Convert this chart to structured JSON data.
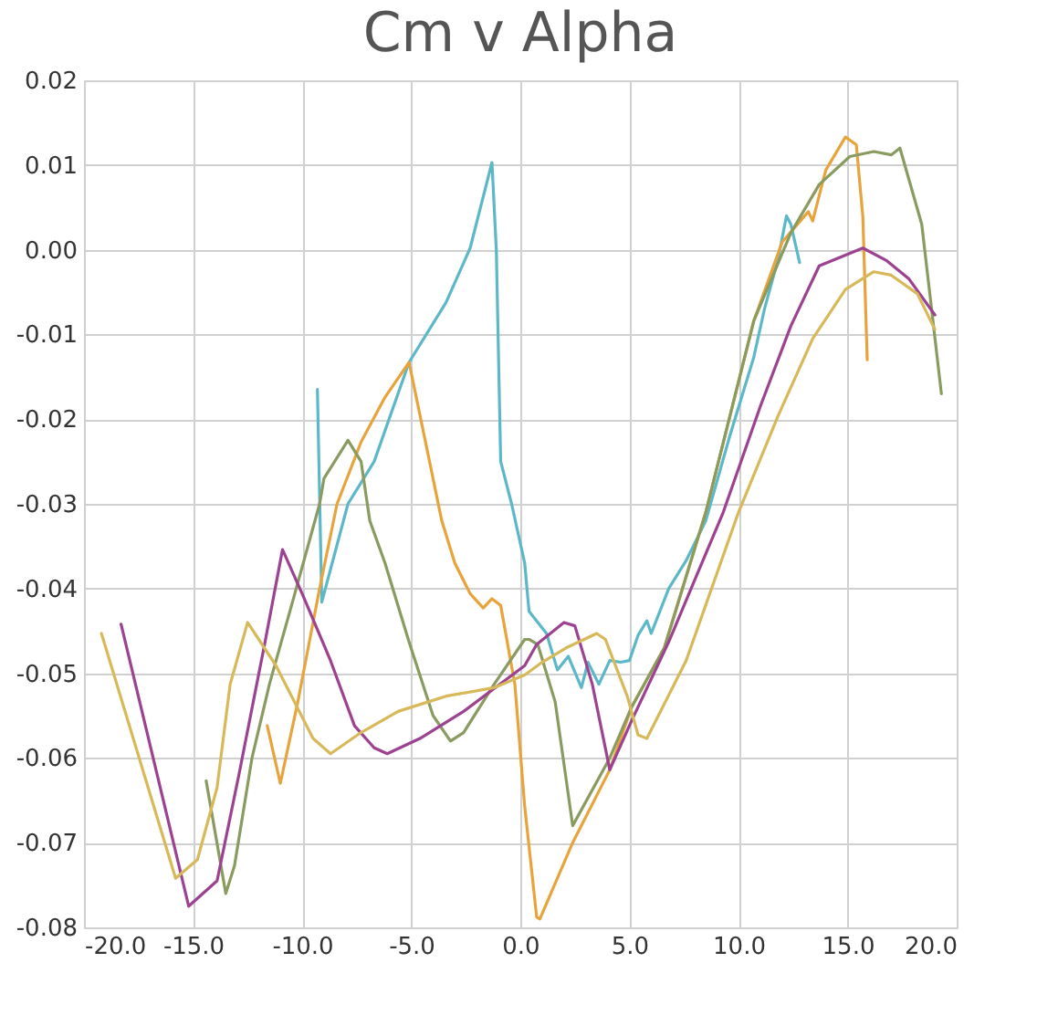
{
  "chart_data": {
    "type": "line",
    "title": "Cm v Alpha",
    "grid": true,
    "marker": "none",
    "line_style": "solid",
    "xlim": [
      -20,
      20
    ],
    "ylim": [
      -0.08,
      0.02
    ],
    "xticks": [
      {
        "value": -20,
        "label": "-20.0"
      },
      {
        "value": -15,
        "label": "-15.0"
      },
      {
        "value": -10,
        "label": "-10.0"
      },
      {
        "value": -5,
        "label": "-5.0"
      },
      {
        "value": 0,
        "label": "0.0"
      },
      {
        "value": 5,
        "label": "5.0"
      },
      {
        "value": 10,
        "label": "10.0"
      },
      {
        "value": 15,
        "label": "15.0"
      },
      {
        "value": 20,
        "label": "20.0"
      }
    ],
    "yticks": [
      {
        "value": -0.08,
        "label": "-0.08"
      },
      {
        "value": -0.07,
        "label": "-0.07"
      },
      {
        "value": -0.06,
        "label": "-0.06"
      },
      {
        "value": -0.05,
        "label": "-0.05"
      },
      {
        "value": -0.04,
        "label": "-0.04"
      },
      {
        "value": -0.03,
        "label": "-0.03"
      },
      {
        "value": -0.02,
        "label": "-0.02"
      },
      {
        "value": -0.01,
        "label": "-0.01"
      },
      {
        "value": 0,
        "label": "0.00"
      },
      {
        "value": 0.01,
        "label": "0.01"
      },
      {
        "value": 0.02,
        "label": "0.02"
      }
    ],
    "series": [
      {
        "color": "#5cb8c9",
        "x": [
          -9.3,
          -9.1,
          -7.9,
          -6.7,
          -5.1,
          -3.4,
          -2.3,
          -1.3,
          -1.1,
          -0.9,
          -0.4,
          0.2,
          0.4,
          1.2,
          1.7,
          2.2,
          2.8,
          3.1,
          3.6,
          4.1,
          4.6,
          5.0,
          5.4,
          5.8,
          6.0,
          6.8,
          7.6,
          8.5,
          9.6,
          10.7,
          11.2,
          11.8,
          12.2,
          12.4,
          12.8
        ],
        "values": [
          -0.0165,
          -0.0416,
          -0.03,
          -0.025,
          -0.0133,
          -0.0062,
          0.0002,
          0.0103,
          0.0,
          -0.025,
          -0.03,
          -0.037,
          -0.0427,
          -0.0453,
          -0.0496,
          -0.048,
          -0.0517,
          -0.0487,
          -0.0513,
          -0.0485,
          -0.0487,
          -0.0485,
          -0.0455,
          -0.0438,
          -0.0453,
          -0.04,
          -0.0367,
          -0.032,
          -0.022,
          -0.0127,
          -0.0069,
          -0.0013,
          0.004,
          0.003,
          -0.0015
        ]
      },
      {
        "color": "#e8a43c",
        "x": [
          -11.6,
          -11.0,
          -10.2,
          -9.2,
          -8.4,
          -7.3,
          -6.2,
          -5.1,
          -3.6,
          -3.0,
          -2.3,
          -1.7,
          -1.3,
          -0.9,
          -0.25,
          0.2,
          0.75,
          0.9,
          2.4,
          4.1,
          5.1,
          6.6,
          8.5,
          10.7,
          12.0,
          13.2,
          13.4,
          14.0,
          14.9,
          15.4,
          15.7,
          15.9
        ],
        "values": [
          -0.0562,
          -0.063,
          -0.0534,
          -0.04,
          -0.03,
          -0.0227,
          -0.0174,
          -0.0133,
          -0.032,
          -0.037,
          -0.0406,
          -0.0423,
          -0.0412,
          -0.042,
          -0.0513,
          -0.0657,
          -0.0788,
          -0.079,
          -0.07,
          -0.0614,
          -0.054,
          -0.047,
          -0.031,
          -0.0084,
          0.0009,
          0.0045,
          0.0034,
          0.0094,
          0.0133,
          0.0124,
          0.0039,
          -0.013
        ]
      },
      {
        "color": "#8a9b60",
        "x": [
          -14.4,
          -13.5,
          -13.1,
          -12.3,
          -11.5,
          -10.4,
          -9.2,
          -9.0,
          -7.9,
          -7.3,
          -6.9,
          -6.2,
          -5.1,
          -4.0,
          -3.2,
          -2.6,
          -1.2,
          0.2,
          0.4,
          0.8,
          1.6,
          2.4,
          4.1,
          5.1,
          6.6,
          8.5,
          10.7,
          12.4,
          13.7,
          15.1,
          16.2,
          17.0,
          17.4,
          18.4,
          19.3
        ],
        "values": [
          -0.0627,
          -0.076,
          -0.0727,
          -0.06,
          -0.0513,
          -0.0412,
          -0.03,
          -0.027,
          -0.0225,
          -0.025,
          -0.032,
          -0.037,
          -0.0463,
          -0.055,
          -0.058,
          -0.057,
          -0.0513,
          -0.046,
          -0.046,
          -0.0466,
          -0.0534,
          -0.068,
          -0.06,
          -0.054,
          -0.047,
          -0.031,
          -0.0084,
          0.002,
          0.0077,
          0.011,
          0.0116,
          0.0112,
          0.012,
          0.003,
          -0.017
        ]
      },
      {
        "color": "#9c4290",
        "x": [
          -18.3,
          -15.2,
          -13.9,
          -12.9,
          -11.7,
          -10.9,
          -10.0,
          -8.7,
          -7.6,
          -6.7,
          -6.1,
          -4.6,
          -2.6,
          0.2,
          0.75,
          2.0,
          2.5,
          3.3,
          4.1,
          5.1,
          6.8,
          9.3,
          11.0,
          12.4,
          13.7,
          15.7,
          16.8,
          17.8,
          19.0
        ],
        "values": [
          -0.0442,
          -0.0775,
          -0.0745,
          -0.062,
          -0.0463,
          -0.0354,
          -0.0406,
          -0.0485,
          -0.0562,
          -0.0588,
          -0.0595,
          -0.0577,
          -0.0545,
          -0.0491,
          -0.0466,
          -0.044,
          -0.0444,
          -0.0513,
          -0.0614,
          -0.0556,
          -0.0463,
          -0.031,
          -0.0185,
          -0.009,
          -0.0019,
          0.0002,
          -0.0013,
          -0.0034,
          -0.0077
        ]
      },
      {
        "color": "#d8b95a",
        "x": [
          -19.2,
          -15.8,
          -14.8,
          -13.9,
          -13.3,
          -12.5,
          -11.2,
          -9.5,
          -8.7,
          -7.3,
          -5.6,
          -3.4,
          -1.2,
          0.2,
          1.0,
          2.1,
          3.5,
          3.9,
          4.9,
          5.4,
          5.8,
          7.6,
          10.0,
          11.8,
          13.4,
          14.9,
          16.2,
          17.0,
          18.2,
          19.0
        ],
        "values": [
          -0.0453,
          -0.0742,
          -0.072,
          -0.0635,
          -0.0513,
          -0.044,
          -0.0491,
          -0.0577,
          -0.0595,
          -0.057,
          -0.0545,
          -0.0527,
          -0.0517,
          -0.0502,
          -0.0487,
          -0.047,
          -0.0453,
          -0.046,
          -0.0527,
          -0.0573,
          -0.0577,
          -0.0485,
          -0.031,
          -0.0197,
          -0.0105,
          -0.0047,
          -0.0026,
          -0.003,
          -0.0052,
          -0.0094
        ]
      }
    ]
  }
}
